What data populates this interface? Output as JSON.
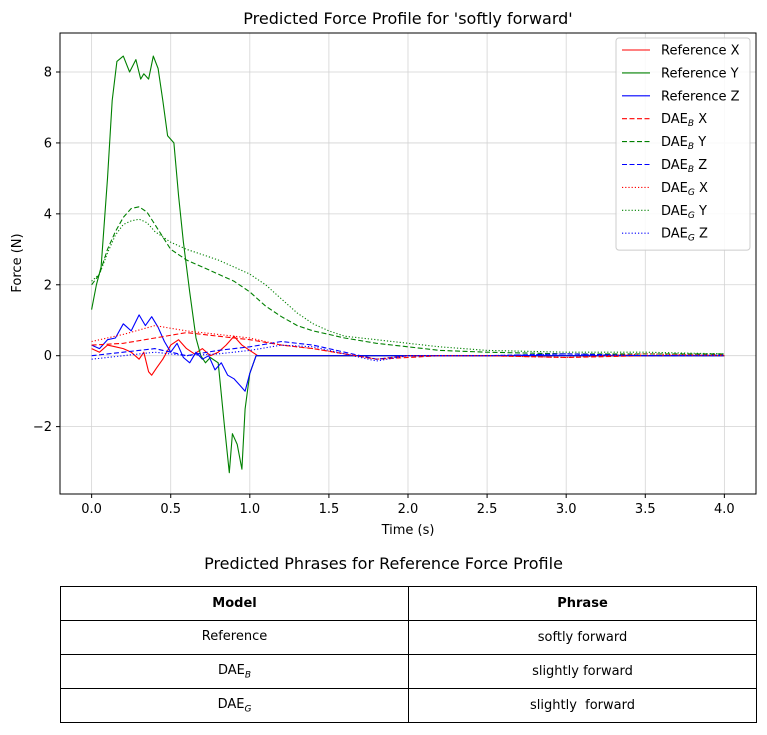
{
  "chart_data": {
    "type": "line",
    "title": "Predicted Force Profile for 'softly forward'",
    "xlabel": "Time (s)",
    "ylabel": "Force (N)",
    "xlim": [
      -0.2,
      4.2
    ],
    "ylim": [
      -3.9,
      9.1
    ],
    "xticks": [
      0.0,
      0.5,
      1.0,
      1.5,
      2.0,
      2.5,
      3.0,
      3.5,
      4.0
    ],
    "xtick_labels": [
      "0.0",
      "0.5",
      "1.0",
      "1.5",
      "2.0",
      "2.5",
      "3.0",
      "3.5",
      "4.0"
    ],
    "yticks": [
      -2,
      0,
      2,
      4,
      6,
      8
    ],
    "ytick_labels": [
      "−2",
      "0",
      "2",
      "4",
      "6",
      "8"
    ],
    "grid": true,
    "legend_position": "top-right",
    "series": [
      {
        "name": "Reference X",
        "base": "Reference X",
        "sub": "",
        "color": "#ff0000",
        "style": "solid",
        "points": [
          [
            0,
            0.2
          ],
          [
            0.05,
            0.1
          ],
          [
            0.1,
            0.3
          ],
          [
            0.15,
            0.25
          ],
          [
            0.2,
            0.2
          ],
          [
            0.25,
            0.1
          ],
          [
            0.3,
            -0.1
          ],
          [
            0.33,
            0.1
          ],
          [
            0.36,
            -0.45
          ],
          [
            0.38,
            -0.55
          ],
          [
            0.41,
            -0.35
          ],
          [
            0.45,
            -0.1
          ],
          [
            0.5,
            0.3
          ],
          [
            0.55,
            0.45
          ],
          [
            0.6,
            0.2
          ],
          [
            0.65,
            0.05
          ],
          [
            0.7,
            0.2
          ],
          [
            0.75,
            0.0
          ],
          [
            0.8,
            0.1
          ],
          [
            0.85,
            0.3
          ],
          [
            0.9,
            0.55
          ],
          [
            0.95,
            0.3
          ],
          [
            1.0,
            0.15
          ],
          [
            1.05,
            0.0
          ],
          [
            4.0,
            0.0
          ]
        ]
      },
      {
        "name": "Reference Y",
        "base": "Reference Y",
        "sub": "",
        "color": "#008000",
        "style": "solid",
        "points": [
          [
            0,
            1.3
          ],
          [
            0.03,
            2.0
          ],
          [
            0.06,
            2.5
          ],
          [
            0.1,
            5.0
          ],
          [
            0.13,
            7.2
          ],
          [
            0.16,
            8.3
          ],
          [
            0.2,
            8.45
          ],
          [
            0.24,
            8.0
          ],
          [
            0.28,
            8.35
          ],
          [
            0.31,
            7.8
          ],
          [
            0.33,
            7.95
          ],
          [
            0.36,
            7.8
          ],
          [
            0.39,
            8.45
          ],
          [
            0.42,
            8.1
          ],
          [
            0.45,
            7.2
          ],
          [
            0.48,
            6.2
          ],
          [
            0.52,
            6.0
          ],
          [
            0.55,
            4.5
          ],
          [
            0.58,
            3.2
          ],
          [
            0.62,
            1.8
          ],
          [
            0.66,
            0.5
          ],
          [
            0.69,
            0.0
          ],
          [
            0.72,
            -0.2
          ],
          [
            0.75,
            -0.05
          ],
          [
            0.8,
            -0.2
          ],
          [
            0.84,
            -2.0
          ],
          [
            0.87,
            -3.3
          ],
          [
            0.89,
            -2.2
          ],
          [
            0.92,
            -2.5
          ],
          [
            0.95,
            -3.2
          ],
          [
            0.97,
            -1.5
          ],
          [
            1.0,
            -0.5
          ],
          [
            1.04,
            0.0
          ],
          [
            4.0,
            0.0
          ]
        ]
      },
      {
        "name": "Reference Z",
        "base": "Reference Z",
        "sub": "",
        "color": "#0000ff",
        "style": "solid",
        "points": [
          [
            0,
            0.3
          ],
          [
            0.05,
            0.2
          ],
          [
            0.1,
            0.45
          ],
          [
            0.15,
            0.5
          ],
          [
            0.2,
            0.9
          ],
          [
            0.25,
            0.7
          ],
          [
            0.3,
            1.15
          ],
          [
            0.34,
            0.85
          ],
          [
            0.38,
            1.1
          ],
          [
            0.42,
            0.8
          ],
          [
            0.46,
            0.4
          ],
          [
            0.5,
            0.1
          ],
          [
            0.54,
            0.35
          ],
          [
            0.58,
            -0.05
          ],
          [
            0.62,
            -0.2
          ],
          [
            0.66,
            0.1
          ],
          [
            0.7,
            -0.1
          ],
          [
            0.74,
            0.0
          ],
          [
            0.78,
            -0.4
          ],
          [
            0.82,
            -0.2
          ],
          [
            0.86,
            -0.55
          ],
          [
            0.9,
            -0.65
          ],
          [
            0.94,
            -0.85
          ],
          [
            0.97,
            -1.0
          ],
          [
            1.0,
            -0.5
          ],
          [
            1.04,
            0.0
          ],
          [
            4.0,
            0.0
          ]
        ]
      },
      {
        "name": "DAE_B X",
        "base": "DAE",
        "sub": "B",
        "suffix": " X",
        "color": "#ff0000",
        "style": "dashed",
        "points": [
          [
            0,
            0.3
          ],
          [
            0.2,
            0.35
          ],
          [
            0.4,
            0.5
          ],
          [
            0.6,
            0.65
          ],
          [
            0.8,
            0.55
          ],
          [
            1.0,
            0.45
          ],
          [
            1.2,
            0.3
          ],
          [
            1.4,
            0.2
          ],
          [
            1.6,
            0.05
          ],
          [
            1.8,
            -0.1
          ],
          [
            2.0,
            -0.05
          ],
          [
            2.2,
            0.0
          ],
          [
            2.5,
            0.0
          ],
          [
            3.0,
            -0.05
          ],
          [
            3.5,
            0.0
          ],
          [
            4.0,
            0.02
          ]
        ]
      },
      {
        "name": "DAE_B Y",
        "base": "DAE",
        "sub": "B",
        "suffix": " Y",
        "color": "#008000",
        "style": "dashed",
        "points": [
          [
            0,
            2.0
          ],
          [
            0.05,
            2.3
          ],
          [
            0.1,
            3.0
          ],
          [
            0.15,
            3.5
          ],
          [
            0.2,
            3.9
          ],
          [
            0.25,
            4.15
          ],
          [
            0.3,
            4.2
          ],
          [
            0.35,
            4.05
          ],
          [
            0.4,
            3.7
          ],
          [
            0.5,
            3.0
          ],
          [
            0.6,
            2.7
          ],
          [
            0.7,
            2.5
          ],
          [
            0.8,
            2.3
          ],
          [
            0.9,
            2.1
          ],
          [
            1.0,
            1.8
          ],
          [
            1.1,
            1.4
          ],
          [
            1.2,
            1.1
          ],
          [
            1.3,
            0.85
          ],
          [
            1.4,
            0.7
          ],
          [
            1.5,
            0.6
          ],
          [
            1.6,
            0.5
          ],
          [
            1.8,
            0.35
          ],
          [
            2.0,
            0.25
          ],
          [
            2.2,
            0.15
          ],
          [
            2.5,
            0.1
          ],
          [
            3.0,
            0.05
          ],
          [
            3.5,
            0.05
          ],
          [
            4.0,
            0.05
          ]
        ]
      },
      {
        "name": "DAE_B Z",
        "base": "DAE",
        "sub": "B",
        "suffix": " Z",
        "color": "#0000ff",
        "style": "dashed",
        "points": [
          [
            0,
            0.0
          ],
          [
            0.2,
            0.1
          ],
          [
            0.4,
            0.2
          ],
          [
            0.6,
            0.0
          ],
          [
            0.8,
            0.15
          ],
          [
            1.0,
            0.25
          ],
          [
            1.2,
            0.4
          ],
          [
            1.4,
            0.3
          ],
          [
            1.6,
            0.1
          ],
          [
            1.8,
            -0.1
          ],
          [
            2.0,
            0.0
          ],
          [
            2.5,
            0.0
          ],
          [
            3.0,
            0.05
          ],
          [
            3.5,
            0.0
          ],
          [
            4.0,
            0.0
          ]
        ]
      },
      {
        "name": "DAE_G X",
        "base": "DAE",
        "sub": "G",
        "suffix": " X",
        "color": "#ff0000",
        "style": "dotted",
        "points": [
          [
            0,
            0.4
          ],
          [
            0.2,
            0.6
          ],
          [
            0.4,
            0.85
          ],
          [
            0.6,
            0.7
          ],
          [
            0.8,
            0.6
          ],
          [
            1.0,
            0.5
          ],
          [
            1.2,
            0.3
          ],
          [
            1.4,
            0.2
          ],
          [
            1.6,
            0.05
          ],
          [
            1.8,
            -0.1
          ],
          [
            2.0,
            0.0
          ],
          [
            2.5,
            0.0
          ],
          [
            3.0,
            -0.05
          ],
          [
            3.5,
            0.05
          ],
          [
            4.0,
            0.0
          ]
        ]
      },
      {
        "name": "DAE_G Y",
        "base": "DAE",
        "sub": "G",
        "suffix": " Y",
        "color": "#008000",
        "style": "dotted",
        "points": [
          [
            0,
            2.1
          ],
          [
            0.05,
            2.3
          ],
          [
            0.1,
            2.9
          ],
          [
            0.15,
            3.4
          ],
          [
            0.2,
            3.7
          ],
          [
            0.25,
            3.8
          ],
          [
            0.3,
            3.85
          ],
          [
            0.35,
            3.75
          ],
          [
            0.4,
            3.5
          ],
          [
            0.5,
            3.2
          ],
          [
            0.6,
            3.0
          ],
          [
            0.7,
            2.85
          ],
          [
            0.8,
            2.7
          ],
          [
            0.9,
            2.5
          ],
          [
            1.0,
            2.3
          ],
          [
            1.1,
            2.0
          ],
          [
            1.2,
            1.6
          ],
          [
            1.3,
            1.2
          ],
          [
            1.4,
            0.9
          ],
          [
            1.5,
            0.7
          ],
          [
            1.6,
            0.55
          ],
          [
            1.8,
            0.45
          ],
          [
            2.0,
            0.35
          ],
          [
            2.2,
            0.25
          ],
          [
            2.5,
            0.15
          ],
          [
            3.0,
            0.1
          ],
          [
            3.5,
            0.1
          ],
          [
            4.0,
            0.05
          ]
        ]
      },
      {
        "name": "DAE_G Z",
        "base": "DAE",
        "sub": "G",
        "suffix": " Z",
        "color": "#0000ff",
        "style": "dotted",
        "points": [
          [
            0,
            -0.1
          ],
          [
            0.2,
            0.0
          ],
          [
            0.4,
            0.1
          ],
          [
            0.6,
            0.0
          ],
          [
            0.8,
            0.05
          ],
          [
            1.0,
            0.15
          ],
          [
            1.2,
            0.3
          ],
          [
            1.4,
            0.25
          ],
          [
            1.6,
            0.05
          ],
          [
            1.8,
            -0.15
          ],
          [
            2.0,
            0.0
          ],
          [
            2.5,
            0.0
          ],
          [
            3.0,
            0.05
          ],
          [
            3.5,
            0.0
          ],
          [
            4.0,
            0.02
          ]
        ]
      }
    ]
  },
  "table": {
    "title": "Predicted Phrases for Reference Force Profile",
    "headers": [
      "Model",
      "Phrase"
    ],
    "rows": [
      {
        "model": "Reference",
        "model_sub": "",
        "phrase": "softly forward"
      },
      {
        "model": "DAE",
        "model_sub": "B",
        "phrase": "slightly forward"
      },
      {
        "model": "DAE",
        "model_sub": "G",
        "phrase": "slightly  forward"
      }
    ]
  }
}
